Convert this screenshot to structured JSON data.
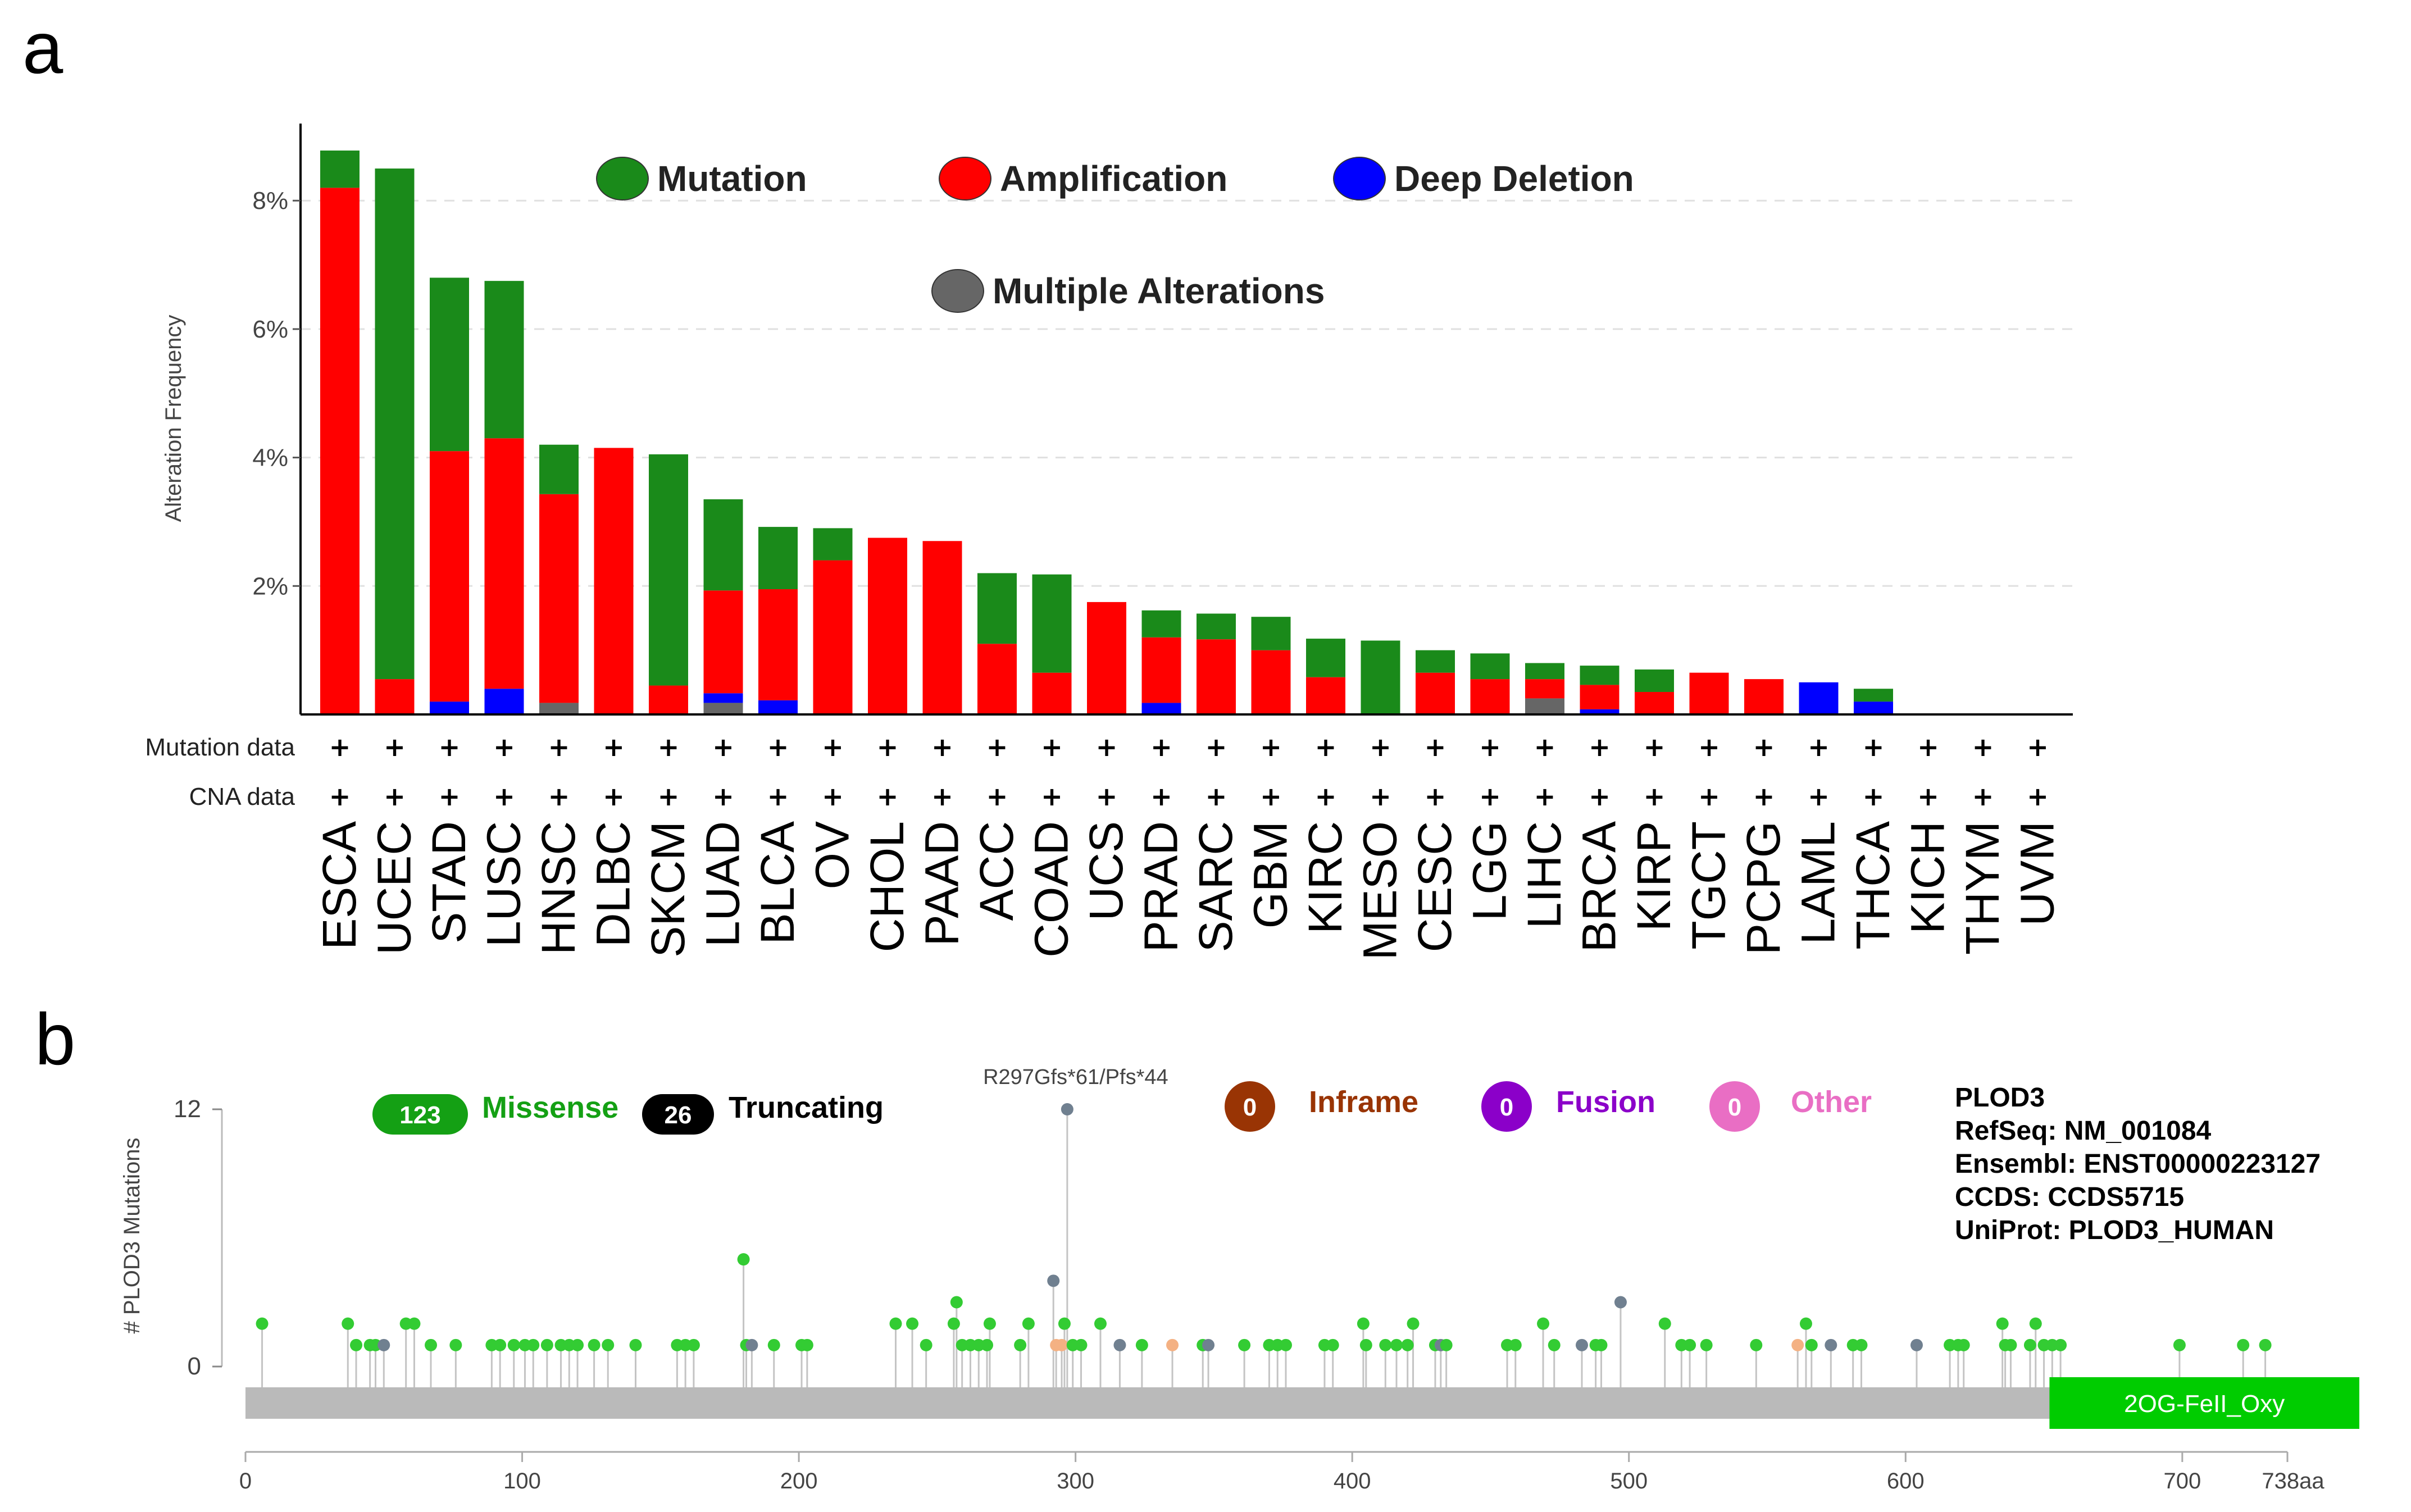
{
  "panels": {
    "a": "a",
    "b": "b"
  },
  "colors": {
    "mutation": "#1a8a1a",
    "amplification": "#ff0000",
    "deep_deletion": "#0000ff",
    "multiple": "#666666",
    "missense": "#14a014",
    "truncating": "#000000",
    "inframe": "#993404",
    "fusion": "#8b00c9",
    "other": "#e96ec4",
    "lollipop_green": "#33cc33",
    "lollipop_gray": "#708090",
    "lollipop_orange": "#f4b183",
    "domain": "#00cc00",
    "backbone": "#bababa"
  },
  "chart_data": [
    {
      "type": "bar",
      "stacked": true,
      "ylabel": "Alteration Frequency",
      "ylim": [
        0,
        9.2
      ],
      "yticks": [
        2,
        4,
        6,
        8
      ],
      "ytick_labels": [
        "2%",
        "4%",
        "6%",
        "8%"
      ],
      "grid": true,
      "categories": [
        "ESCA",
        "UCEC",
        "STAD",
        "LUSC",
        "HNSC",
        "DLBC",
        "SKCM",
        "LUAD",
        "BLCA",
        "OV",
        "CHOL",
        "PAAD",
        "ACC",
        "COAD",
        "UCS",
        "PRAD",
        "SARC",
        "GBM",
        "KIRC",
        "MESO",
        "CESC",
        "LGG",
        "LIHC",
        "BRCA",
        "KIRP",
        "TGCT",
        "PCPG",
        "LAML",
        "THCA",
        "KICH",
        "THYM",
        "UVM"
      ],
      "series": [
        {
          "name": "Multiple Alterations",
          "color_key": "multiple",
          "values": [
            0,
            0,
            0,
            0,
            0.18,
            0,
            0,
            0.18,
            0,
            0,
            0,
            0,
            0,
            0,
            0,
            0,
            0,
            0,
            0,
            0,
            0,
            0,
            0.25,
            0,
            0,
            0,
            0,
            0,
            0,
            0,
            0,
            0
          ]
        },
        {
          "name": "Deep Deletion",
          "color_key": "deep_deletion",
          "values": [
            0,
            0,
            0.2,
            0.4,
            0,
            0,
            0,
            0.15,
            0.22,
            0,
            0,
            0,
            0,
            0,
            0,
            0.18,
            0,
            0,
            0,
            0,
            0,
            0,
            0,
            0.08,
            0,
            0,
            0,
            0.5,
            0.2,
            0,
            0,
            0
          ]
        },
        {
          "name": "Amplification",
          "color_key": "amplification",
          "values": [
            8.2,
            0.55,
            3.9,
            3.9,
            3.25,
            4.15,
            0.45,
            1.6,
            1.73,
            2.4,
            2.75,
            2.7,
            1.1,
            0.65,
            1.75,
            1.02,
            1.17,
            1.0,
            0.58,
            0,
            0.65,
            0.55,
            0.3,
            0.38,
            0.35,
            0.65,
            0.55,
            0,
            0,
            0,
            0,
            0
          ]
        },
        {
          "name": "Mutation",
          "color_key": "mutation",
          "values": [
            0.58,
            7.95,
            2.7,
            2.45,
            0.77,
            0,
            3.6,
            1.42,
            0.97,
            0.5,
            0,
            0,
            1.1,
            1.53,
            0,
            0.42,
            0.4,
            0.52,
            0.6,
            1.15,
            0.35,
            0.4,
            0.25,
            0.3,
            0.35,
            0,
            0,
            0,
            0.2,
            0,
            0,
            0
          ]
        }
      ],
      "legend": {
        "placement": "top",
        "entries": [
          {
            "label": "Mutation",
            "color_key": "mutation"
          },
          {
            "label": "Amplification",
            "color_key": "amplification"
          },
          {
            "label": "Deep Deletion",
            "color_key": "deep_deletion"
          },
          {
            "label": "Multiple Alterations",
            "color_key": "multiple"
          }
        ]
      },
      "rows": [
        {
          "label": "Mutation data",
          "marker": "+"
        },
        {
          "label": "CNA data",
          "marker": "+"
        }
      ]
    },
    {
      "type": "scatter",
      "subtype": "lollipop",
      "ylabel": "# PLOD3 Mutations",
      "ylim": [
        0,
        12
      ],
      "yticks": [
        0,
        12
      ],
      "xlim": [
        0,
        738
      ],
      "xticks": [
        0,
        100,
        200,
        300,
        400,
        500,
        600,
        700
      ],
      "x_end_label": "738aa",
      "annotation": {
        "text": "R297Gfs*61/Pfs*44",
        "x": 297,
        "y": 12
      },
      "legend": [
        {
          "count": "123",
          "label": "Missense",
          "color_key": "missense"
        },
        {
          "count": "26",
          "label": "Truncating",
          "color_key": "truncating"
        },
        {
          "count": "0",
          "label": "Inframe",
          "color_key": "inframe"
        },
        {
          "count": "0",
          "label": "Fusion",
          "color_key": "fusion"
        },
        {
          "count": "0",
          "label": "Other",
          "color_key": "other"
        }
      ],
      "info": [
        "PLOD3",
        "RefSeq: NM_001084",
        "Ensembl: ENST00000223127",
        "CCDS: CCDS5715",
        "UniProt: PLOD3_HUMAN"
      ],
      "domains": [
        {
          "name": "2OG-FeII_Oxy",
          "start": 652,
          "end": 738
        }
      ],
      "points": [
        {
          "x": 6,
          "y": 2,
          "c": "g"
        },
        {
          "x": 37,
          "y": 2,
          "c": "g"
        },
        {
          "x": 40,
          "y": 1,
          "c": "g"
        },
        {
          "x": 45,
          "y": 1,
          "c": "g"
        },
        {
          "x": 47,
          "y": 1,
          "c": "g"
        },
        {
          "x": 50,
          "y": 1,
          "c": "s"
        },
        {
          "x": 58,
          "y": 2,
          "c": "g"
        },
        {
          "x": 61,
          "y": 2,
          "c": "g"
        },
        {
          "x": 67,
          "y": 1,
          "c": "g"
        },
        {
          "x": 76,
          "y": 1,
          "c": "g"
        },
        {
          "x": 89,
          "y": 1,
          "c": "g"
        },
        {
          "x": 92,
          "y": 1,
          "c": "g"
        },
        {
          "x": 97,
          "y": 1,
          "c": "g"
        },
        {
          "x": 101,
          "y": 1,
          "c": "g"
        },
        {
          "x": 104,
          "y": 1,
          "c": "g"
        },
        {
          "x": 109,
          "y": 1,
          "c": "g"
        },
        {
          "x": 114,
          "y": 1,
          "c": "g"
        },
        {
          "x": 117,
          "y": 1,
          "c": "g"
        },
        {
          "x": 120,
          "y": 1,
          "c": "g"
        },
        {
          "x": 126,
          "y": 1,
          "c": "g"
        },
        {
          "x": 131,
          "y": 1,
          "c": "g"
        },
        {
          "x": 141,
          "y": 1,
          "c": "g"
        },
        {
          "x": 156,
          "y": 1,
          "c": "g"
        },
        {
          "x": 159,
          "y": 1,
          "c": "g"
        },
        {
          "x": 162,
          "y": 1,
          "c": "g"
        },
        {
          "x": 180,
          "y": 5,
          "c": "g"
        },
        {
          "x": 181,
          "y": 1,
          "c": "g"
        },
        {
          "x": 183,
          "y": 1,
          "c": "s"
        },
        {
          "x": 191,
          "y": 1,
          "c": "g"
        },
        {
          "x": 201,
          "y": 1,
          "c": "g"
        },
        {
          "x": 203,
          "y": 1,
          "c": "g"
        },
        {
          "x": 235,
          "y": 2,
          "c": "g"
        },
        {
          "x": 241,
          "y": 2,
          "c": "g"
        },
        {
          "x": 246,
          "y": 1,
          "c": "g"
        },
        {
          "x": 256,
          "y": 2,
          "c": "g"
        },
        {
          "x": 257,
          "y": 3,
          "c": "g"
        },
        {
          "x": 259,
          "y": 1,
          "c": "g"
        },
        {
          "x": 262,
          "y": 1,
          "c": "g"
        },
        {
          "x": 265,
          "y": 1,
          "c": "g"
        },
        {
          "x": 268,
          "y": 1,
          "c": "g"
        },
        {
          "x": 269,
          "y": 2,
          "c": "g"
        },
        {
          "x": 280,
          "y": 1,
          "c": "g"
        },
        {
          "x": 283,
          "y": 2,
          "c": "g"
        },
        {
          "x": 292,
          "y": 4,
          "c": "s"
        },
        {
          "x": 293,
          "y": 1,
          "c": "o"
        },
        {
          "x": 295,
          "y": 1,
          "c": "o"
        },
        {
          "x": 296,
          "y": 2,
          "c": "g"
        },
        {
          "x": 297,
          "y": 12,
          "c": "s"
        },
        {
          "x": 299,
          "y": 1,
          "c": "g"
        },
        {
          "x": 302,
          "y": 1,
          "c": "g"
        },
        {
          "x": 309,
          "y": 2,
          "c": "g"
        },
        {
          "x": 316,
          "y": 1,
          "c": "s"
        },
        {
          "x": 324,
          "y": 1,
          "c": "g"
        },
        {
          "x": 335,
          "y": 1,
          "c": "o"
        },
        {
          "x": 346,
          "y": 1,
          "c": "g"
        },
        {
          "x": 348,
          "y": 1,
          "c": "s"
        },
        {
          "x": 361,
          "y": 1,
          "c": "g"
        },
        {
          "x": 370,
          "y": 1,
          "c": "g"
        },
        {
          "x": 373,
          "y": 1,
          "c": "g"
        },
        {
          "x": 376,
          "y": 1,
          "c": "g"
        },
        {
          "x": 390,
          "y": 1,
          "c": "g"
        },
        {
          "x": 393,
          "y": 1,
          "c": "g"
        },
        {
          "x": 404,
          "y": 2,
          "c": "g"
        },
        {
          "x": 405,
          "y": 1,
          "c": "g"
        },
        {
          "x": 412,
          "y": 1,
          "c": "g"
        },
        {
          "x": 416,
          "y": 1,
          "c": "g"
        },
        {
          "x": 420,
          "y": 1,
          "c": "g"
        },
        {
          "x": 422,
          "y": 2,
          "c": "g"
        },
        {
          "x": 430,
          "y": 1,
          "c": "g"
        },
        {
          "x": 432,
          "y": 1,
          "c": "s"
        },
        {
          "x": 434,
          "y": 1,
          "c": "g"
        },
        {
          "x": 456,
          "y": 1,
          "c": "g"
        },
        {
          "x": 459,
          "y": 1,
          "c": "g"
        },
        {
          "x": 469,
          "y": 2,
          "c": "g"
        },
        {
          "x": 473,
          "y": 1,
          "c": "g"
        },
        {
          "x": 483,
          "y": 1,
          "c": "s"
        },
        {
          "x": 488,
          "y": 1,
          "c": "g"
        },
        {
          "x": 490,
          "y": 1,
          "c": "g"
        },
        {
          "x": 497,
          "y": 3,
          "c": "s"
        },
        {
          "x": 513,
          "y": 2,
          "c": "g"
        },
        {
          "x": 519,
          "y": 1,
          "c": "g"
        },
        {
          "x": 522,
          "y": 1,
          "c": "g"
        },
        {
          "x": 528,
          "y": 1,
          "c": "g"
        },
        {
          "x": 546,
          "y": 1,
          "c": "g"
        },
        {
          "x": 561,
          "y": 1,
          "c": "o"
        },
        {
          "x": 564,
          "y": 2,
          "c": "g"
        },
        {
          "x": 566,
          "y": 1,
          "c": "g"
        },
        {
          "x": 573,
          "y": 1,
          "c": "s"
        },
        {
          "x": 581,
          "y": 1,
          "c": "g"
        },
        {
          "x": 584,
          "y": 1,
          "c": "g"
        },
        {
          "x": 604,
          "y": 1,
          "c": "s"
        },
        {
          "x": 616,
          "y": 1,
          "c": "g"
        },
        {
          "x": 619,
          "y": 1,
          "c": "g"
        },
        {
          "x": 621,
          "y": 1,
          "c": "g"
        },
        {
          "x": 635,
          "y": 2,
          "c": "g"
        },
        {
          "x": 636,
          "y": 1,
          "c": "g"
        },
        {
          "x": 638,
          "y": 1,
          "c": "g"
        },
        {
          "x": 645,
          "y": 1,
          "c": "g"
        },
        {
          "x": 647,
          "y": 2,
          "c": "g"
        },
        {
          "x": 650,
          "y": 1,
          "c": "g"
        },
        {
          "x": 653,
          "y": 1,
          "c": "g"
        },
        {
          "x": 656,
          "y": 1,
          "c": "g"
        },
        {
          "x": 699,
          "y": 1,
          "c": "g"
        },
        {
          "x": 722,
          "y": 1,
          "c": "g"
        },
        {
          "x": 730,
          "y": 1,
          "c": "g"
        }
      ]
    }
  ]
}
